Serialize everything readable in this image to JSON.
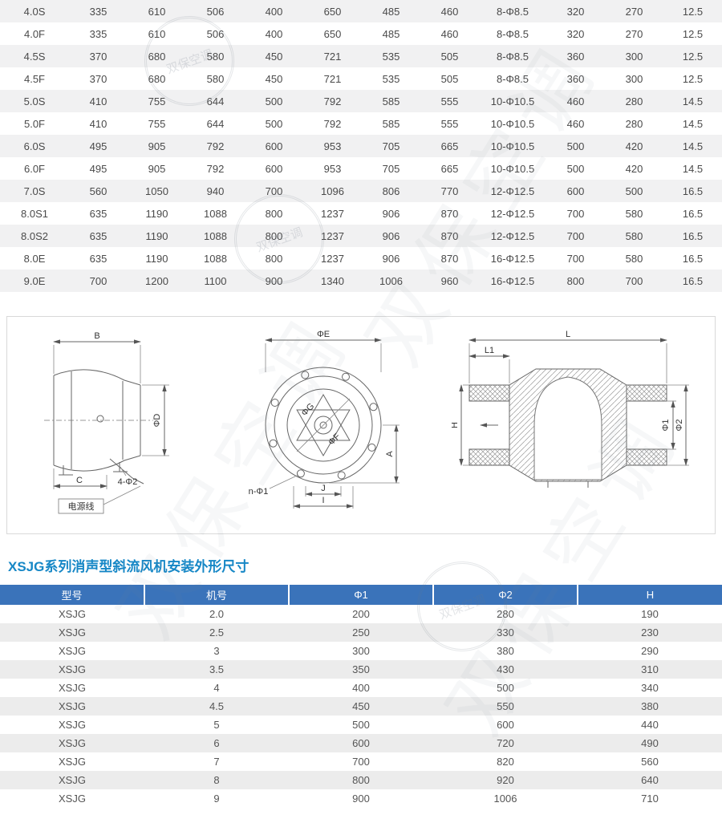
{
  "watermark": {
    "text": "双保空调",
    "stamp_text": "双保空调"
  },
  "top_table": {
    "rows": [
      [
        "4.0S",
        "335",
        "610",
        "506",
        "400",
        "650",
        "485",
        "460",
        "8-Φ8.5",
        "320",
        "270",
        "12.5"
      ],
      [
        "4.0F",
        "335",
        "610",
        "506",
        "400",
        "650",
        "485",
        "460",
        "8-Φ8.5",
        "320",
        "270",
        "12.5"
      ],
      [
        "4.5S",
        "370",
        "680",
        "580",
        "450",
        "721",
        "535",
        "505",
        "8-Φ8.5",
        "360",
        "300",
        "12.5"
      ],
      [
        "4.5F",
        "370",
        "680",
        "580",
        "450",
        "721",
        "535",
        "505",
        "8-Φ8.5",
        "360",
        "300",
        "12.5"
      ],
      [
        "5.0S",
        "410",
        "755",
        "644",
        "500",
        "792",
        "585",
        "555",
        "10-Φ10.5",
        "460",
        "280",
        "14.5"
      ],
      [
        "5.0F",
        "410",
        "755",
        "644",
        "500",
        "792",
        "585",
        "555",
        "10-Φ10.5",
        "460",
        "280",
        "14.5"
      ],
      [
        "6.0S",
        "495",
        "905",
        "792",
        "600",
        "953",
        "705",
        "665",
        "10-Φ10.5",
        "500",
        "420",
        "14.5"
      ],
      [
        "6.0F",
        "495",
        "905",
        "792",
        "600",
        "953",
        "705",
        "665",
        "10-Φ10.5",
        "500",
        "420",
        "14.5"
      ],
      [
        "7.0S",
        "560",
        "1050",
        "940",
        "700",
        "1096",
        "806",
        "770",
        "12-Φ12.5",
        "600",
        "500",
        "16.5"
      ],
      [
        "8.0S1",
        "635",
        "1190",
        "1088",
        "800",
        "1237",
        "906",
        "870",
        "12-Φ12.5",
        "700",
        "580",
        "16.5"
      ],
      [
        "8.0S2",
        "635",
        "1190",
        "1088",
        "800",
        "1237",
        "906",
        "870",
        "12-Φ12.5",
        "700",
        "580",
        "16.5"
      ],
      [
        "8.0E",
        "635",
        "1190",
        "1088",
        "800",
        "1237",
        "906",
        "870",
        "16-Φ12.5",
        "700",
        "580",
        "16.5"
      ],
      [
        "9.0E",
        "700",
        "1200",
        "1100",
        "900",
        "1340",
        "1006",
        "960",
        "16-Φ12.5",
        "800",
        "700",
        "16.5"
      ]
    ]
  },
  "diagram": {
    "left": {
      "b": "B",
      "phi_d": "ΦD",
      "c": "C",
      "holes": "4-Φ2",
      "cord": "电源线"
    },
    "middle": {
      "phi_e": "ΦE",
      "phi_g": "ΦG",
      "phi_f": "ΦF",
      "a": "A",
      "holes": "n-Φ1",
      "j": "J",
      "i": "I"
    },
    "right": {
      "l": "L",
      "l1": "L1",
      "phi1": "Φ1",
      "phi2": "Φ2",
      "h": "H"
    }
  },
  "section": {
    "title": "XSJG系列消声型斜流风机安装外形尺寸"
  },
  "bottom_table": {
    "headers": [
      "型号",
      "机号",
      "Φ1",
      "Φ2",
      "H"
    ],
    "rows": [
      [
        "XSJG",
        "2.0",
        "200",
        "280",
        "190"
      ],
      [
        "XSJG",
        "2.5",
        "250",
        "330",
        "230"
      ],
      [
        "XSJG",
        "3",
        "300",
        "380",
        "290"
      ],
      [
        "XSJG",
        "3.5",
        "350",
        "430",
        "310"
      ],
      [
        "XSJG",
        "4",
        "400",
        "500",
        "340"
      ],
      [
        "XSJG",
        "4.5",
        "450",
        "550",
        "380"
      ],
      [
        "XSJG",
        "5",
        "500",
        "600",
        "440"
      ],
      [
        "XSJG",
        "6",
        "600",
        "720",
        "490"
      ],
      [
        "XSJG",
        "7",
        "700",
        "820",
        "560"
      ],
      [
        "XSJG",
        "8",
        "800",
        "920",
        "640"
      ],
      [
        "XSJG",
        "9",
        "900",
        "1006",
        "710"
      ]
    ]
  }
}
